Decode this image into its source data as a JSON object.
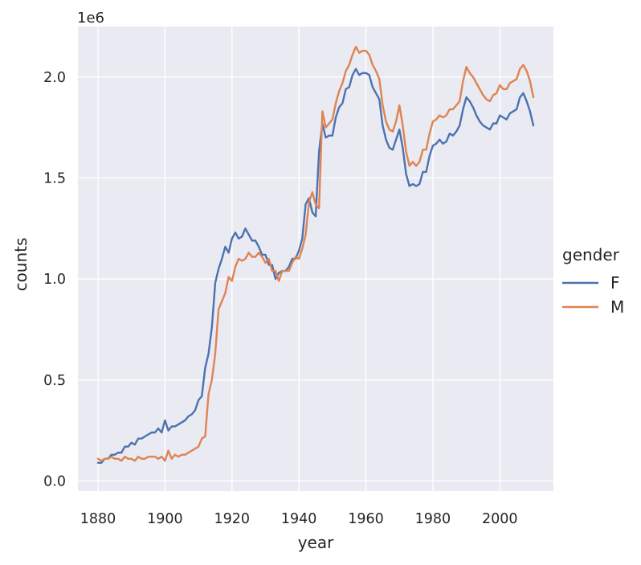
{
  "chart_data": {
    "type": "line",
    "title": "",
    "xlabel": "year",
    "ylabel": "counts",
    "y_scale_label": "1e6",
    "xlim": [
      1874,
      2016
    ],
    "ylim": [
      -0.05,
      2.25
    ],
    "x_ticks": [
      1880,
      1900,
      1920,
      1940,
      1960,
      1980,
      2000
    ],
    "x_tick_labels": [
      "1880",
      "1900",
      "1920",
      "1940",
      "1960",
      "1980",
      "2000"
    ],
    "y_ticks": [
      0.0,
      0.5,
      1.0,
      1.5,
      2.0
    ],
    "y_tick_labels": [
      "0.0",
      "0.5",
      "1.0",
      "1.5",
      "2.0"
    ],
    "grid": true,
    "legend": {
      "title": "gender",
      "placement": "right"
    },
    "series": [
      {
        "name": "F",
        "color": "#4c72b0",
        "points": [
          [
            1880,
            0.09
          ],
          [
            1881,
            0.09
          ],
          [
            1882,
            0.11
          ],
          [
            1883,
            0.11
          ],
          [
            1884,
            0.13
          ],
          [
            1885,
            0.13
          ],
          [
            1886,
            0.14
          ],
          [
            1887,
            0.14
          ],
          [
            1888,
            0.17
          ],
          [
            1889,
            0.17
          ],
          [
            1890,
            0.19
          ],
          [
            1891,
            0.18
          ],
          [
            1892,
            0.21
          ],
          [
            1893,
            0.21
          ],
          [
            1894,
            0.22
          ],
          [
            1895,
            0.23
          ],
          [
            1896,
            0.24
          ],
          [
            1897,
            0.24
          ],
          [
            1898,
            0.26
          ],
          [
            1899,
            0.24
          ],
          [
            1900,
            0.3
          ],
          [
            1901,
            0.25
          ],
          [
            1902,
            0.27
          ],
          [
            1903,
            0.27
          ],
          [
            1904,
            0.28
          ],
          [
            1905,
            0.29
          ],
          [
            1906,
            0.3
          ],
          [
            1907,
            0.32
          ],
          [
            1908,
            0.33
          ],
          [
            1909,
            0.35
          ],
          [
            1910,
            0.4
          ],
          [
            1911,
            0.42
          ],
          [
            1912,
            0.56
          ],
          [
            1913,
            0.63
          ],
          [
            1914,
            0.76
          ],
          [
            1915,
            0.98
          ],
          [
            1916,
            1.05
          ],
          [
            1917,
            1.1
          ],
          [
            1918,
            1.16
          ],
          [
            1919,
            1.13
          ],
          [
            1920,
            1.2
          ],
          [
            1921,
            1.23
          ],
          [
            1922,
            1.2
          ],
          [
            1923,
            1.21
          ],
          [
            1924,
            1.25
          ],
          [
            1925,
            1.22
          ],
          [
            1926,
            1.19
          ],
          [
            1927,
            1.19
          ],
          [
            1928,
            1.16
          ],
          [
            1929,
            1.12
          ],
          [
            1930,
            1.12
          ],
          [
            1931,
            1.07
          ],
          [
            1932,
            1.07
          ],
          [
            1933,
            1.0
          ],
          [
            1934,
            1.03
          ],
          [
            1935,
            1.04
          ],
          [
            1936,
            1.04
          ],
          [
            1937,
            1.06
          ],
          [
            1938,
            1.1
          ],
          [
            1939,
            1.1
          ],
          [
            1940,
            1.14
          ],
          [
            1941,
            1.2
          ],
          [
            1942,
            1.37
          ],
          [
            1943,
            1.4
          ],
          [
            1944,
            1.33
          ],
          [
            1945,
            1.31
          ],
          [
            1946,
            1.63
          ],
          [
            1947,
            1.77
          ],
          [
            1948,
            1.7
          ],
          [
            1949,
            1.71
          ],
          [
            1950,
            1.71
          ],
          [
            1951,
            1.8
          ],
          [
            1952,
            1.85
          ],
          [
            1953,
            1.87
          ],
          [
            1954,
            1.94
          ],
          [
            1955,
            1.95
          ],
          [
            1956,
            2.01
          ],
          [
            1957,
            2.04
          ],
          [
            1958,
            2.01
          ],
          [
            1959,
            2.02
          ],
          [
            1960,
            2.02
          ],
          [
            1961,
            2.01
          ],
          [
            1962,
            1.95
          ],
          [
            1963,
            1.92
          ],
          [
            1964,
            1.89
          ],
          [
            1965,
            1.76
          ],
          [
            1966,
            1.69
          ],
          [
            1967,
            1.65
          ],
          [
            1968,
            1.64
          ],
          [
            1969,
            1.69
          ],
          [
            1970,
            1.74
          ],
          [
            1971,
            1.65
          ],
          [
            1972,
            1.52
          ],
          [
            1973,
            1.46
          ],
          [
            1974,
            1.47
          ],
          [
            1975,
            1.46
          ],
          [
            1976,
            1.47
          ],
          [
            1977,
            1.53
          ],
          [
            1978,
            1.53
          ],
          [
            1979,
            1.61
          ],
          [
            1980,
            1.66
          ],
          [
            1981,
            1.67
          ],
          [
            1982,
            1.69
          ],
          [
            1983,
            1.67
          ],
          [
            1984,
            1.68
          ],
          [
            1985,
            1.72
          ],
          [
            1986,
            1.71
          ],
          [
            1987,
            1.73
          ],
          [
            1988,
            1.76
          ],
          [
            1989,
            1.84
          ],
          [
            1990,
            1.9
          ],
          [
            1991,
            1.88
          ],
          [
            1992,
            1.85
          ],
          [
            1993,
            1.81
          ],
          [
            1994,
            1.78
          ],
          [
            1995,
            1.76
          ],
          [
            1996,
            1.75
          ],
          [
            1997,
            1.74
          ],
          [
            1998,
            1.77
          ],
          [
            1999,
            1.77
          ],
          [
            2000,
            1.81
          ],
          [
            2001,
            1.8
          ],
          [
            2002,
            1.79
          ],
          [
            2003,
            1.82
          ],
          [
            2004,
            1.83
          ],
          [
            2005,
            1.84
          ],
          [
            2006,
            1.9
          ],
          [
            2007,
            1.92
          ],
          [
            2008,
            1.88
          ],
          [
            2009,
            1.83
          ],
          [
            2010,
            1.76
          ]
        ]
      },
      {
        "name": "M",
        "color": "#dd8452",
        "points": [
          [
            1880,
            0.11
          ],
          [
            1881,
            0.1
          ],
          [
            1882,
            0.11
          ],
          [
            1883,
            0.11
          ],
          [
            1884,
            0.12
          ],
          [
            1885,
            0.11
          ],
          [
            1886,
            0.11
          ],
          [
            1887,
            0.1
          ],
          [
            1888,
            0.12
          ],
          [
            1889,
            0.11
          ],
          [
            1890,
            0.11
          ],
          [
            1891,
            0.1
          ],
          [
            1892,
            0.12
          ],
          [
            1893,
            0.11
          ],
          [
            1894,
            0.11
          ],
          [
            1895,
            0.12
          ],
          [
            1896,
            0.12
          ],
          [
            1897,
            0.12
          ],
          [
            1898,
            0.11
          ],
          [
            1899,
            0.12
          ],
          [
            1900,
            0.1
          ],
          [
            1901,
            0.15
          ],
          [
            1902,
            0.11
          ],
          [
            1903,
            0.13
          ],
          [
            1904,
            0.12
          ],
          [
            1905,
            0.13
          ],
          [
            1906,
            0.13
          ],
          [
            1907,
            0.14
          ],
          [
            1908,
            0.15
          ],
          [
            1909,
            0.16
          ],
          [
            1910,
            0.17
          ],
          [
            1911,
            0.21
          ],
          [
            1912,
            0.22
          ],
          [
            1913,
            0.43
          ],
          [
            1914,
            0.5
          ],
          [
            1915,
            0.63
          ],
          [
            1916,
            0.85
          ],
          [
            1917,
            0.89
          ],
          [
            1918,
            0.93
          ],
          [
            1919,
            1.01
          ],
          [
            1920,
            0.99
          ],
          [
            1921,
            1.06
          ],
          [
            1922,
            1.1
          ],
          [
            1923,
            1.09
          ],
          [
            1924,
            1.1
          ],
          [
            1925,
            1.13
          ],
          [
            1926,
            1.11
          ],
          [
            1927,
            1.11
          ],
          [
            1928,
            1.13
          ],
          [
            1929,
            1.11
          ],
          [
            1930,
            1.08
          ],
          [
            1931,
            1.1
          ],
          [
            1932,
            1.04
          ],
          [
            1933,
            1.04
          ],
          [
            1934,
            0.99
          ],
          [
            1935,
            1.04
          ],
          [
            1936,
            1.04
          ],
          [
            1937,
            1.04
          ],
          [
            1938,
            1.08
          ],
          [
            1939,
            1.11
          ],
          [
            1940,
            1.1
          ],
          [
            1941,
            1.15
          ],
          [
            1942,
            1.22
          ],
          [
            1943,
            1.38
          ],
          [
            1944,
            1.43
          ],
          [
            1945,
            1.37
          ],
          [
            1946,
            1.35
          ],
          [
            1947,
            1.83
          ],
          [
            1948,
            1.75
          ],
          [
            1949,
            1.77
          ],
          [
            1950,
            1.79
          ],
          [
            1951,
            1.87
          ],
          [
            1952,
            1.93
          ],
          [
            1953,
            1.97
          ],
          [
            1954,
            2.03
          ],
          [
            1955,
            2.06
          ],
          [
            1956,
            2.11
          ],
          [
            1957,
            2.15
          ],
          [
            1958,
            2.12
          ],
          [
            1959,
            2.13
          ],
          [
            1960,
            2.13
          ],
          [
            1961,
            2.11
          ],
          [
            1962,
            2.06
          ],
          [
            1963,
            2.03
          ],
          [
            1964,
            1.99
          ],
          [
            1965,
            1.86
          ],
          [
            1966,
            1.78
          ],
          [
            1967,
            1.74
          ],
          [
            1968,
            1.73
          ],
          [
            1969,
            1.78
          ],
          [
            1970,
            1.86
          ],
          [
            1971,
            1.76
          ],
          [
            1972,
            1.63
          ],
          [
            1973,
            1.56
          ],
          [
            1974,
            1.58
          ],
          [
            1975,
            1.56
          ],
          [
            1976,
            1.58
          ],
          [
            1977,
            1.64
          ],
          [
            1978,
            1.64
          ],
          [
            1979,
            1.72
          ],
          [
            1980,
            1.78
          ],
          [
            1981,
            1.79
          ],
          [
            1982,
            1.81
          ],
          [
            1983,
            1.8
          ],
          [
            1984,
            1.81
          ],
          [
            1985,
            1.84
          ],
          [
            1986,
            1.84
          ],
          [
            1987,
            1.86
          ],
          [
            1988,
            1.88
          ],
          [
            1989,
            1.98
          ],
          [
            1990,
            2.05
          ],
          [
            1991,
            2.02
          ],
          [
            1992,
            2.0
          ],
          [
            1993,
            1.97
          ],
          [
            1994,
            1.94
          ],
          [
            1995,
            1.91
          ],
          [
            1996,
            1.89
          ],
          [
            1997,
            1.88
          ],
          [
            1998,
            1.91
          ],
          [
            1999,
            1.92
          ],
          [
            2000,
            1.96
          ],
          [
            2001,
            1.94
          ],
          [
            2002,
            1.94
          ],
          [
            2003,
            1.97
          ],
          [
            2004,
            1.98
          ],
          [
            2005,
            1.99
          ],
          [
            2006,
            2.04
          ],
          [
            2007,
            2.06
          ],
          [
            2008,
            2.03
          ],
          [
            2009,
            1.98
          ],
          [
            2010,
            1.9
          ]
        ]
      }
    ]
  }
}
